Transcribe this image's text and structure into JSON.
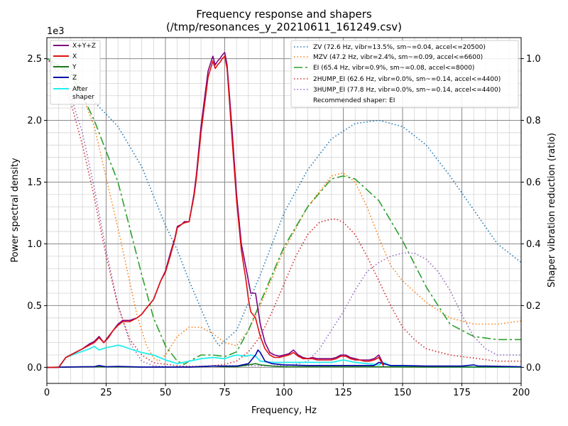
{
  "chart_data": {
    "type": "line",
    "title": "Frequency response and shapers",
    "subtitle": "(/tmp/resonances_y_20210611_161249.csv)",
    "xlabel": "Frequency, Hz",
    "ylabel": "Power spectral density",
    "y2label": "Shaper vibration reduction (ratio)",
    "y_multiplier": "1e3",
    "xlim": [
      0,
      200
    ],
    "ylim": [
      -0.13,
      2.67
    ],
    "y2lim": [
      -0.052,
      1.068
    ],
    "x_ticks": [
      "0",
      "25",
      "50",
      "75",
      "100",
      "125",
      "150",
      "175",
      "200"
    ],
    "y_ticks": [
      "0.0",
      "0.5",
      "1.0",
      "1.5",
      "2.0",
      "2.5"
    ],
    "y2_ticks": [
      "0.0",
      "0.2",
      "0.4",
      "0.6",
      "0.8",
      "1.0"
    ],
    "grid": true,
    "legend_left_position": "top-left",
    "legend_right_position": "top-right",
    "psd_series": [
      {
        "name": "X+Y+Z",
        "color": "#800080",
        "width": 1.6,
        "x": [
          0,
          5,
          8,
          12,
          15,
          18,
          20,
          22,
          24,
          26,
          28,
          30,
          32,
          35,
          38,
          40,
          42,
          45,
          48,
          50,
          52,
          54,
          55,
          57,
          58,
          60,
          62,
          63,
          65,
          66,
          68,
          70,
          71,
          72,
          73,
          74,
          75,
          76,
          77,
          78,
          80,
          82,
          84,
          85,
          86,
          88,
          90,
          92,
          94,
          96,
          98,
          100,
          102,
          104,
          106,
          108,
          110,
          112,
          114,
          116,
          118,
          120,
          122,
          124,
          126,
          128,
          130,
          132,
          134,
          136,
          138,
          140,
          142
        ],
        "y": [
          0,
          0,
          0.08,
          0.12,
          0.15,
          0.19,
          0.21,
          0.25,
          0.2,
          0.25,
          0.3,
          0.35,
          0.38,
          0.38,
          0.4,
          0.43,
          0.48,
          0.55,
          0.7,
          0.78,
          0.92,
          1.05,
          1.14,
          1.16,
          1.18,
          1.18,
          1.4,
          1.55,
          1.95,
          2.1,
          2.4,
          2.52,
          2.45,
          2.48,
          2.5,
          2.53,
          2.55,
          2.45,
          2.2,
          1.95,
          1.4,
          1.0,
          0.8,
          0.7,
          0.6,
          0.6,
          0.35,
          0.2,
          0.12,
          0.1,
          0.09,
          0.1,
          0.11,
          0.14,
          0.1,
          0.08,
          0.07,
          0.08,
          0.07,
          0.07,
          0.07,
          0.07,
          0.08,
          0.1,
          0.1,
          0.08,
          0.07,
          0.06,
          0.06,
          0.06,
          0.07,
          0.1,
          0.02
        ]
      },
      {
        "name": "X",
        "color": "#dd1111",
        "width": 1.6,
        "x": [
          0,
          5,
          8,
          12,
          15,
          18,
          20,
          22,
          24,
          26,
          28,
          30,
          32,
          35,
          38,
          40,
          42,
          45,
          48,
          50,
          52,
          54,
          55,
          57,
          58,
          60,
          62,
          63,
          65,
          66,
          68,
          70,
          71,
          72,
          73,
          74,
          75,
          76,
          77,
          78,
          80,
          82,
          84,
          85,
          86,
          88,
          90,
          92,
          94,
          96,
          98,
          100,
          102,
          104,
          106,
          108,
          110,
          112,
          114,
          116,
          118,
          120,
          122,
          124,
          126,
          128,
          130,
          132,
          134,
          136,
          138,
          140,
          142
        ],
        "y": [
          0,
          0,
          0.08,
          0.12,
          0.15,
          0.18,
          0.2,
          0.24,
          0.2,
          0.24,
          0.3,
          0.34,
          0.37,
          0.37,
          0.4,
          0.43,
          0.48,
          0.55,
          0.7,
          0.77,
          0.9,
          1.04,
          1.13,
          1.16,
          1.17,
          1.18,
          1.38,
          1.52,
          1.9,
          2.05,
          2.35,
          2.48,
          2.42,
          2.45,
          2.47,
          2.5,
          2.52,
          2.42,
          2.15,
          1.88,
          1.35,
          0.95,
          0.7,
          0.55,
          0.45,
          0.4,
          0.25,
          0.15,
          0.1,
          0.08,
          0.08,
          0.09,
          0.1,
          0.12,
          0.09,
          0.07,
          0.07,
          0.07,
          0.06,
          0.06,
          0.06,
          0.06,
          0.07,
          0.09,
          0.09,
          0.07,
          0.06,
          0.06,
          0.05,
          0.05,
          0.06,
          0.08,
          0.01
        ]
      },
      {
        "name": "Y",
        "color": "#1a7a1a",
        "width": 1.6,
        "x": [
          0,
          20,
          40,
          60,
          65,
          70,
          75,
          80,
          85,
          88,
          90,
          95,
          100,
          120,
          140,
          160,
          200
        ],
        "y": [
          0,
          0.005,
          0.002,
          0.002,
          0.005,
          0.01,
          0.005,
          0.005,
          0.02,
          0.03,
          0.02,
          0.01,
          0.005,
          0.005,
          0.005,
          0.003,
          0.002
        ]
      },
      {
        "name": "Z",
        "color": "#0000aa",
        "width": 1.6,
        "x": [
          0,
          15,
          20,
          22,
          25,
          30,
          40,
          60,
          70,
          75,
          80,
          85,
          88,
          89,
          90,
          92,
          95,
          100,
          110,
          120,
          130,
          138,
          140,
          142,
          145,
          150,
          160,
          175,
          180,
          182,
          185,
          200
        ],
        "y": [
          0,
          0.005,
          0.005,
          0.015,
          0.005,
          0.008,
          0.003,
          0.003,
          0.01,
          0.01,
          0.01,
          0.03,
          0.1,
          0.14,
          0.12,
          0.05,
          0.03,
          0.02,
          0.015,
          0.015,
          0.015,
          0.015,
          0.04,
          0.03,
          0.015,
          0.015,
          0.01,
          0.01,
          0.02,
          0.01,
          0.01,
          0.005
        ]
      },
      {
        "name": "After\nshaper",
        "color": "#22eeee",
        "width": 1.8,
        "x": [
          0,
          5,
          8,
          12,
          15,
          18,
          20,
          22,
          25,
          28,
          30,
          32,
          35,
          40,
          45,
          50,
          55,
          60,
          65,
          70,
          75,
          78,
          80,
          84,
          86,
          88,
          90,
          95,
          100,
          105,
          110,
          120,
          125,
          130,
          140,
          142,
          145,
          160,
          180,
          200
        ],
        "y": [
          0,
          0,
          0.08,
          0.11,
          0.13,
          0.15,
          0.17,
          0.14,
          0.16,
          0.17,
          0.18,
          0.17,
          0.15,
          0.12,
          0.1,
          0.06,
          0.03,
          0.05,
          0.07,
          0.08,
          0.07,
          0.09,
          0.1,
          0.09,
          0.1,
          0.09,
          0.05,
          0.04,
          0.04,
          0.04,
          0.04,
          0.04,
          0.06,
          0.04,
          0.02,
          0.04,
          0.01,
          0.005,
          0.003,
          0.002
        ]
      }
    ],
    "shaper_series": [
      {
        "name": "ZV (72.6 Hz, vibr=13.5%, sm~=0.04, accel<=20500)",
        "color": "#1f77b4",
        "dash": "1.5,3",
        "x": [
          0,
          10,
          20,
          30,
          40,
          50,
          55,
          60,
          65,
          70,
          72.6,
          75,
          80,
          90,
          100,
          110,
          120,
          130,
          140,
          150,
          160,
          170,
          180,
          190,
          200
        ],
        "y": [
          1.0,
          0.96,
          0.86,
          0.78,
          0.65,
          0.46,
          0.38,
          0.28,
          0.19,
          0.1,
          0.07,
          0.085,
          0.12,
          0.3,
          0.5,
          0.64,
          0.74,
          0.79,
          0.8,
          0.78,
          0.72,
          0.62,
          0.51,
          0.4,
          0.34
        ]
      },
      {
        "name": "MZV (47.2 Hz, vibr=2.4%, sm~=0.09, accel<=6600)",
        "color": "#ff7f0e",
        "dash": "1.5,3",
        "x": [
          0,
          10,
          15,
          20,
          30,
          38,
          42,
          45,
          47.2,
          50,
          55,
          60,
          65,
          70,
          75,
          80,
          85,
          90,
          100,
          110,
          120,
          125,
          130,
          135,
          140,
          145,
          150,
          160,
          170,
          180,
          190,
          200
        ],
        "y": [
          1.0,
          0.95,
          0.88,
          0.78,
          0.45,
          0.17,
          0.07,
          0.03,
          0.02,
          0.04,
          0.1,
          0.13,
          0.13,
          0.11,
          0.08,
          0.07,
          0.12,
          0.2,
          0.38,
          0.52,
          0.62,
          0.63,
          0.6,
          0.52,
          0.42,
          0.33,
          0.28,
          0.21,
          0.16,
          0.14,
          0.14,
          0.15
        ]
      },
      {
        "name": "EI (65.4 Hz, vibr=0.9%, sm~=0.08, accel<=8000)",
        "color": "#2ca02c",
        "dash": "12,4,3,4",
        "x": [
          0,
          10,
          15,
          20,
          30,
          40,
          45,
          50,
          55,
          58,
          60,
          65,
          70,
          75,
          80,
          85,
          90,
          100,
          110,
          120,
          125,
          130,
          140,
          150,
          160,
          170,
          180,
          190,
          200
        ],
        "y": [
          1.0,
          0.95,
          0.88,
          0.8,
          0.6,
          0.3,
          0.16,
          0.07,
          0.02,
          0.01,
          0.02,
          0.04,
          0.04,
          0.035,
          0.05,
          0.12,
          0.21,
          0.39,
          0.52,
          0.61,
          0.62,
          0.61,
          0.54,
          0.41,
          0.26,
          0.14,
          0.1,
          0.09,
          0.09
        ]
      },
      {
        "name": "2HUMP_EI (62.6 Hz, vibr=0.0%, sm~=0.14, accel<=4400)",
        "color": "#d62728",
        "dash": "1.5,3",
        "x": [
          0,
          5,
          10,
          15,
          20,
          25,
          30,
          35,
          40,
          45,
          50,
          55,
          60,
          65,
          70,
          75,
          80,
          85,
          90,
          95,
          100,
          105,
          110,
          115,
          120,
          122,
          125,
          130,
          135,
          140,
          145,
          150,
          155,
          160,
          170,
          180,
          190,
          200
        ],
        "y": [
          1.0,
          0.95,
          0.86,
          0.72,
          0.55,
          0.36,
          0.2,
          0.09,
          0.04,
          0.015,
          0.01,
          0.005,
          0.003,
          0.003,
          0.005,
          0.01,
          0.02,
          0.05,
          0.1,
          0.18,
          0.27,
          0.36,
          0.43,
          0.47,
          0.48,
          0.48,
          0.47,
          0.43,
          0.36,
          0.28,
          0.2,
          0.13,
          0.09,
          0.06,
          0.04,
          0.03,
          0.02,
          0.02
        ]
      },
      {
        "name": "3HUMP_EI (77.8 Hz, vibr=0.0%, sm~=0.14, accel<=4400)",
        "color": "#9467bd",
        "dash": "1.5,3",
        "x": [
          0,
          5,
          10,
          15,
          20,
          25,
          30,
          35,
          40,
          45,
          50,
          55,
          60,
          65,
          70,
          75,
          80,
          85,
          90,
          95,
          100,
          105,
          110,
          115,
          120,
          125,
          130,
          135,
          140,
          145,
          150,
          155,
          160,
          165,
          170,
          175,
          180,
          185,
          190,
          200
        ],
        "y": [
          1.0,
          0.96,
          0.88,
          0.76,
          0.58,
          0.38,
          0.2,
          0.08,
          0.02,
          0.005,
          0.002,
          0.001,
          0.001,
          0.002,
          0.004,
          0.005,
          0.005,
          0.005,
          0.005,
          0.005,
          0.005,
          0.01,
          0.02,
          0.06,
          0.12,
          0.18,
          0.25,
          0.31,
          0.34,
          0.36,
          0.37,
          0.37,
          0.35,
          0.31,
          0.25,
          0.17,
          0.1,
          0.06,
          0.04,
          0.04
        ]
      }
    ],
    "recommended_text": "Recommended shaper: EI"
  }
}
